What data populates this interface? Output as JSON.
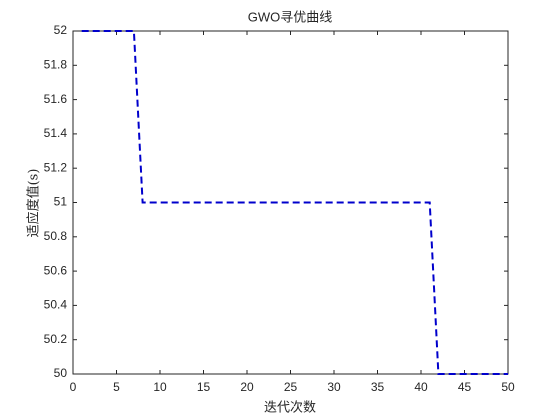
{
  "chart_data": {
    "type": "line",
    "title": "GWO寻优曲线",
    "x_label": "迭代次数",
    "y_label": "适应度值(s)",
    "x": [
      1,
      2,
      3,
      4,
      5,
      6,
      7,
      8,
      9,
      10,
      11,
      12,
      13,
      14,
      15,
      16,
      17,
      18,
      19,
      20,
      21,
      22,
      23,
      24,
      25,
      26,
      27,
      28,
      29,
      30,
      31,
      32,
      33,
      34,
      35,
      36,
      37,
      38,
      39,
      40,
      41,
      42,
      43,
      44,
      45,
      46,
      47,
      48,
      49,
      50
    ],
    "series": [
      {
        "color": "#0000cc",
        "line_style": "dashed",
        "values": [
          52,
          52,
          52,
          52,
          52,
          52,
          52,
          51,
          51,
          51,
          51,
          51,
          51,
          51,
          51,
          51,
          51,
          51,
          51,
          51,
          51,
          51,
          51,
          51,
          51,
          51,
          51,
          51,
          51,
          51,
          51,
          51,
          51,
          51,
          51,
          51,
          51,
          51,
          51,
          51,
          51,
          50,
          50,
          50,
          50,
          50,
          50,
          50,
          50,
          50
        ]
      }
    ],
    "xlim": [
      0,
      50
    ],
    "xticks": [
      0,
      5,
      10,
      15,
      20,
      25,
      30,
      35,
      40,
      45,
      50
    ],
    "ylim": [
      50,
      52
    ],
    "yticks": [
      50,
      50.2,
      50.4,
      50.6,
      50.8,
      51,
      51.2,
      51.4,
      51.6,
      51.8,
      52
    ],
    "grid": false
  }
}
